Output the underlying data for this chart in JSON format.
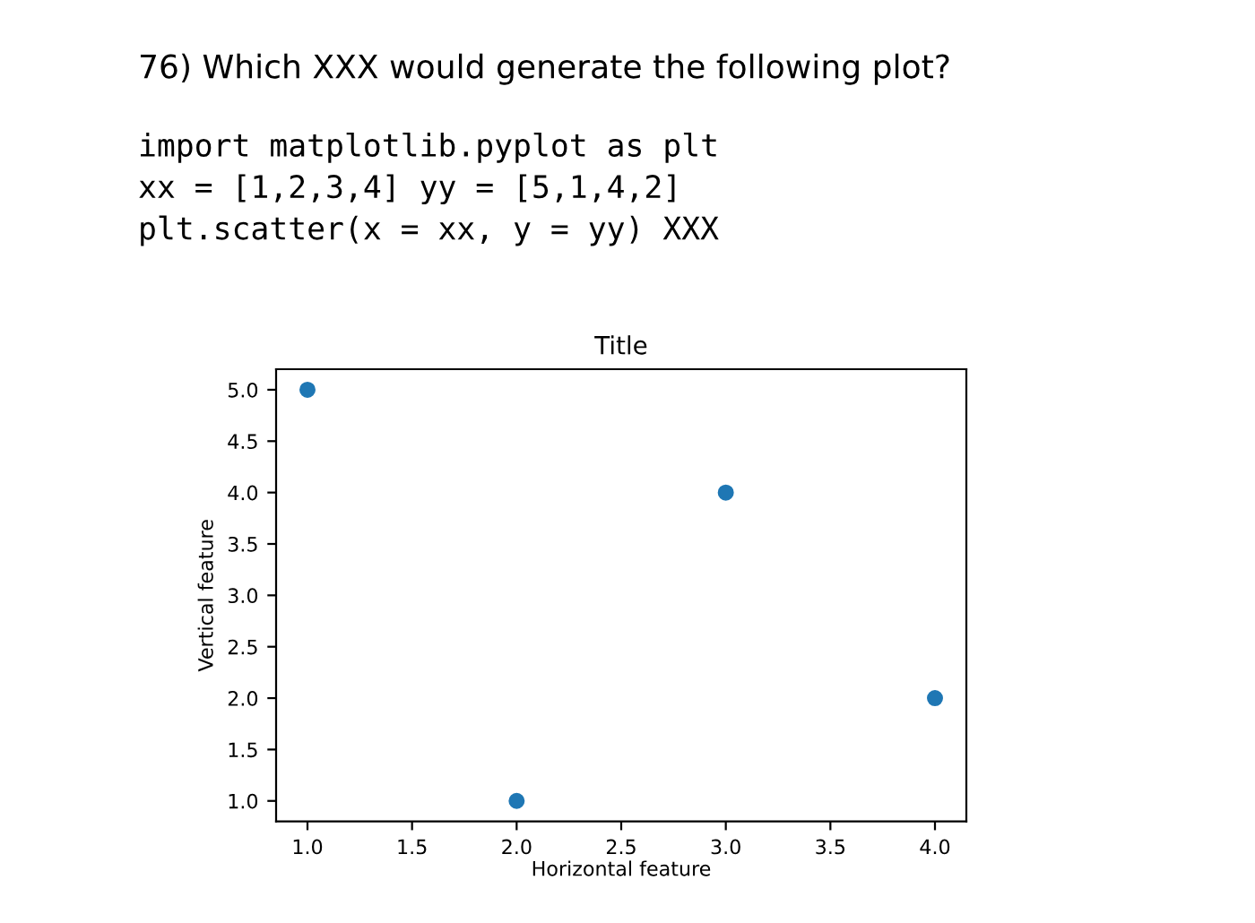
{
  "chart_data": {
    "type": "scatter",
    "title": "Title",
    "xlabel": "Horizontal feature",
    "ylabel": "Vertical feature",
    "annotations": [
      "76) Which XXX would generate the following plot?",
      "import matplotlib.pyplot as plt",
      "xx = [1,2,3,4] yy = [5,1,4,2]",
      "plt.scatter(x = xx, y = yy) XXX"
    ],
    "x": [
      1,
      2,
      3,
      4
    ],
    "series": [
      {
        "color": "#1f77b4",
        "values": [
          5,
          1,
          4,
          2
        ]
      }
    ],
    "marker": "circle",
    "grid": false,
    "legend": false,
    "xlim": [
      0.85,
      4.15
    ],
    "ylim": [
      0.8,
      5.2
    ],
    "xticks": [
      {
        "value": 1,
        "label": "1.0"
      },
      {
        "value": 1.5,
        "label": "1.5"
      },
      {
        "value": 2,
        "label": "2.0"
      },
      {
        "value": 2.5,
        "label": "2.5"
      },
      {
        "value": 3,
        "label": "3.0"
      },
      {
        "value": 3.5,
        "label": "3.5"
      },
      {
        "value": 4,
        "label": "4.0"
      }
    ],
    "yticks": [
      {
        "value": 1,
        "label": "1.0"
      },
      {
        "value": 1.5,
        "label": "1.5"
      },
      {
        "value": 2,
        "label": "2.0"
      },
      {
        "value": 2.5,
        "label": "2.5"
      },
      {
        "value": 3,
        "label": "3.0"
      },
      {
        "value": 3.5,
        "label": "3.5"
      },
      {
        "value": 4,
        "label": "4.0"
      },
      {
        "value": 4.5,
        "label": "4.5"
      },
      {
        "value": 5,
        "label": "5.0"
      }
    ]
  }
}
